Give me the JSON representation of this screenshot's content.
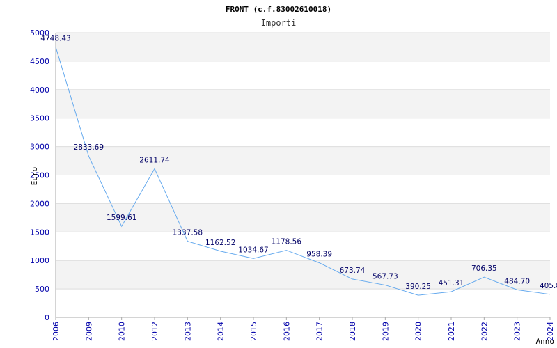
{
  "chart_data": {
    "type": "line",
    "title": "FRONT (c.f.83002610018)",
    "subtitle": "Importi",
    "xlabel": "Anno",
    "ylabel": "Euro",
    "ylim": [
      0,
      5000
    ],
    "yticks": [
      0,
      500,
      1000,
      1500,
      2000,
      2500,
      3000,
      3500,
      4000,
      4500,
      5000
    ],
    "grid": true,
    "categories": [
      "2006",
      "2009",
      "2010",
      "2012",
      "2013",
      "2014",
      "2015",
      "2016",
      "2017",
      "2018",
      "2019",
      "2020",
      "2021",
      "2022",
      "2023",
      "2024"
    ],
    "series": [
      {
        "name": "Importi",
        "values": [
          4748.43,
          2833.69,
          1599.61,
          2611.74,
          1337.58,
          1162.52,
          1034.67,
          1178.56,
          958.39,
          673.74,
          567.73,
          390.25,
          451.31,
          706.35,
          484.7,
          405.8
        ],
        "labels": [
          "4748.43",
          "2833.69",
          "1599.61",
          "2611.74",
          "1337.58",
          "1162.52",
          "1034.67",
          "1178.56",
          "958.39",
          "673.74",
          "567.73",
          "390.25",
          "451.31",
          "706.35",
          "484.70",
          "405.8"
        ]
      }
    ],
    "colors": {
      "line": "#66aaee",
      "band": "#f3f3f3",
      "gridline": "#dddddd",
      "axis": "#aaaaaa",
      "tick_text": "#0000aa",
      "label_text": "#000066"
    }
  }
}
